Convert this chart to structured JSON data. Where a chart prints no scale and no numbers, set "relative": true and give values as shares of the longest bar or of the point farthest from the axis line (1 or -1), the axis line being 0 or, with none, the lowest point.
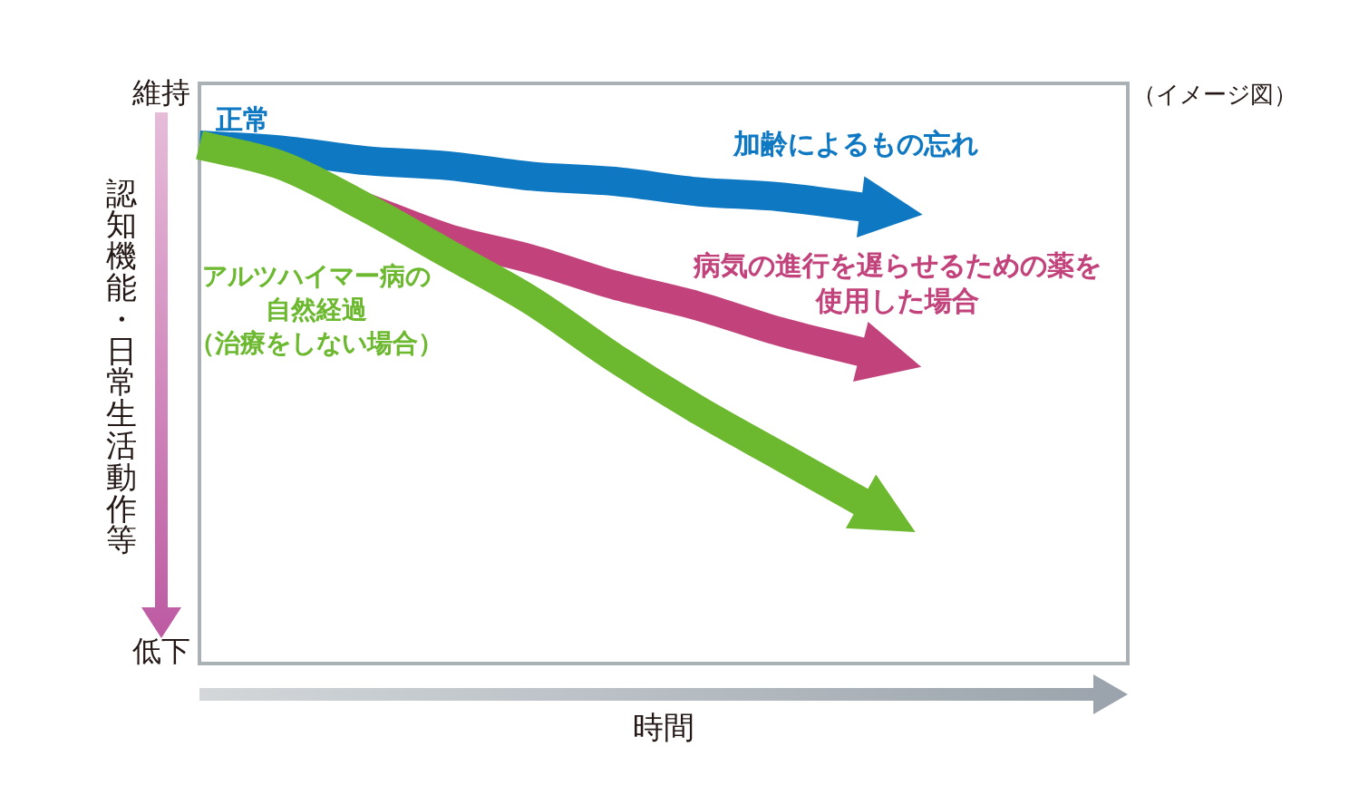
{
  "chart_data": {
    "type": "line",
    "relative": true,
    "categories": [
      null,
      null,
      null,
      null,
      null,
      null,
      null,
      null,
      null
    ],
    "series": [
      {
        "name": "加齢によるもの忘れ",
        "color": "#0f78c2",
        "values": [
          1,
          0.99,
          0.97,
          0.96,
          0.94,
          0.93,
          0.91,
          0.9,
          0.88
        ]
      },
      {
        "name": "病気の進行を遅らせるための薬を使用した場合",
        "color": "#c2437c",
        "values": [
          null,
          null,
          0.88,
          0.82,
          0.78,
          0.73,
          0.69,
          0.64,
          0.6
        ]
      },
      {
        "name": "アルツハイマー病の自然経過（治療をしない場合）",
        "color": "#6cb82f",
        "values": [
          1,
          0.96,
          0.88,
          0.79,
          0.7,
          0.59,
          0.49,
          0.4,
          0.31
        ]
      }
    ],
    "xlabel": "時間",
    "ylabel": "認知機能・日常生活動作等",
    "annotations": [
      "維持",
      "低下",
      "（イメージ図）",
      "正常"
    ]
  }
}
